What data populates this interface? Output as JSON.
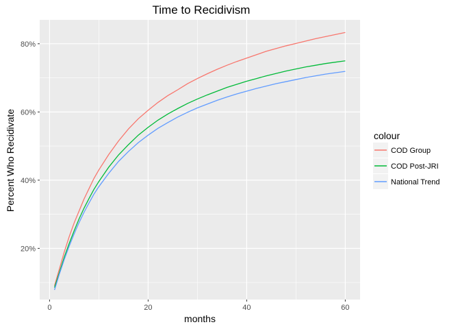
{
  "chart_data": {
    "type": "line",
    "title": "Time to Recidivism",
    "xlabel": "months",
    "ylabel": "Percent Who Recidivate",
    "xlim": [
      -2,
      63
    ],
    "ylim": [
      0.05,
      0.87
    ],
    "x_ticks": [
      0,
      20,
      40,
      60
    ],
    "x_tick_labels": [
      "0",
      "20",
      "40",
      "60"
    ],
    "y_ticks": [
      0.2,
      0.4,
      0.6,
      0.8
    ],
    "y_tick_labels": [
      "20%",
      "40%",
      "60%",
      "80%"
    ],
    "grid": true,
    "legend": {
      "title": "colour",
      "placement": "right"
    },
    "x": [
      1,
      2,
      3,
      4,
      5,
      6,
      7,
      8,
      9,
      10,
      12,
      14,
      16,
      18,
      20,
      22,
      24,
      26,
      28,
      30,
      32,
      34,
      36,
      38,
      40,
      42,
      44,
      46,
      48,
      50,
      52,
      54,
      56,
      58,
      60
    ],
    "series": [
      {
        "name": "COD Group",
        "color": "#F8766D",
        "values": [
          0.09,
          0.14,
          0.19,
          0.235,
          0.275,
          0.31,
          0.345,
          0.375,
          0.405,
          0.43,
          0.475,
          0.515,
          0.55,
          0.58,
          0.605,
          0.628,
          0.648,
          0.665,
          0.683,
          0.698,
          0.712,
          0.725,
          0.737,
          0.748,
          0.758,
          0.768,
          0.778,
          0.786,
          0.794,
          0.801,
          0.808,
          0.815,
          0.821,
          0.827,
          0.833
        ]
      },
      {
        "name": "COD Post-JRI",
        "color": "#00BA38",
        "values": [
          0.085,
          0.13,
          0.175,
          0.215,
          0.252,
          0.287,
          0.318,
          0.346,
          0.373,
          0.396,
          0.438,
          0.474,
          0.504,
          0.532,
          0.555,
          0.576,
          0.594,
          0.61,
          0.625,
          0.638,
          0.65,
          0.661,
          0.672,
          0.681,
          0.69,
          0.698,
          0.706,
          0.713,
          0.72,
          0.726,
          0.732,
          0.737,
          0.742,
          0.746,
          0.75
        ]
      },
      {
        "name": "National Trend",
        "color": "#619CFF",
        "values": [
          0.078,
          0.125,
          0.168,
          0.207,
          0.243,
          0.276,
          0.306,
          0.333,
          0.359,
          0.381,
          0.42,
          0.455,
          0.484,
          0.51,
          0.532,
          0.552,
          0.569,
          0.585,
          0.599,
          0.612,
          0.623,
          0.634,
          0.644,
          0.653,
          0.661,
          0.669,
          0.676,
          0.683,
          0.689,
          0.695,
          0.701,
          0.706,
          0.711,
          0.715,
          0.719
        ]
      }
    ]
  },
  "colors": {
    "panel_background": "#EBEBEB",
    "grid": "#FFFFFF",
    "legend_key_background": "#F2F2F2"
  }
}
